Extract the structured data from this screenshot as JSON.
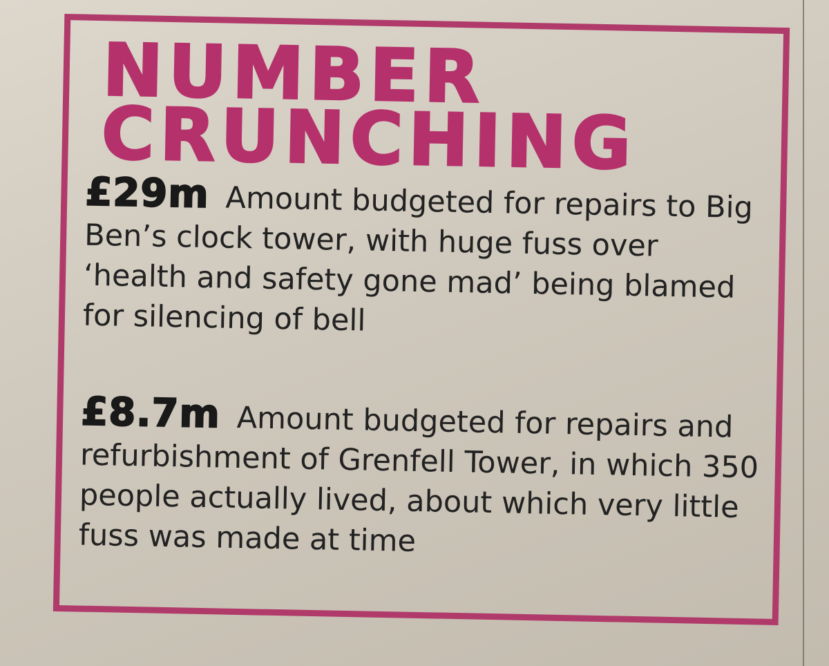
{
  "headline": {
    "line1": "NUMBER",
    "line2": "CRUNCHING"
  },
  "entries": [
    {
      "amount": "£29m",
      "text": "Amount budgeted for repairs to Big Ben’s clock tower, with huge fuss over ‘health and safety gone mad’ being blamed for silencing of bell"
    },
    {
      "amount": "£8.7m",
      "text": "Amount budgeted for repairs and refurbishment of Grenfell Tower, in which 350 people actually lived, about which very little fuss was made at time"
    }
  ],
  "colors": {
    "accent": "#b5316b",
    "text": "#222222",
    "paper": "#d6d0c5"
  }
}
